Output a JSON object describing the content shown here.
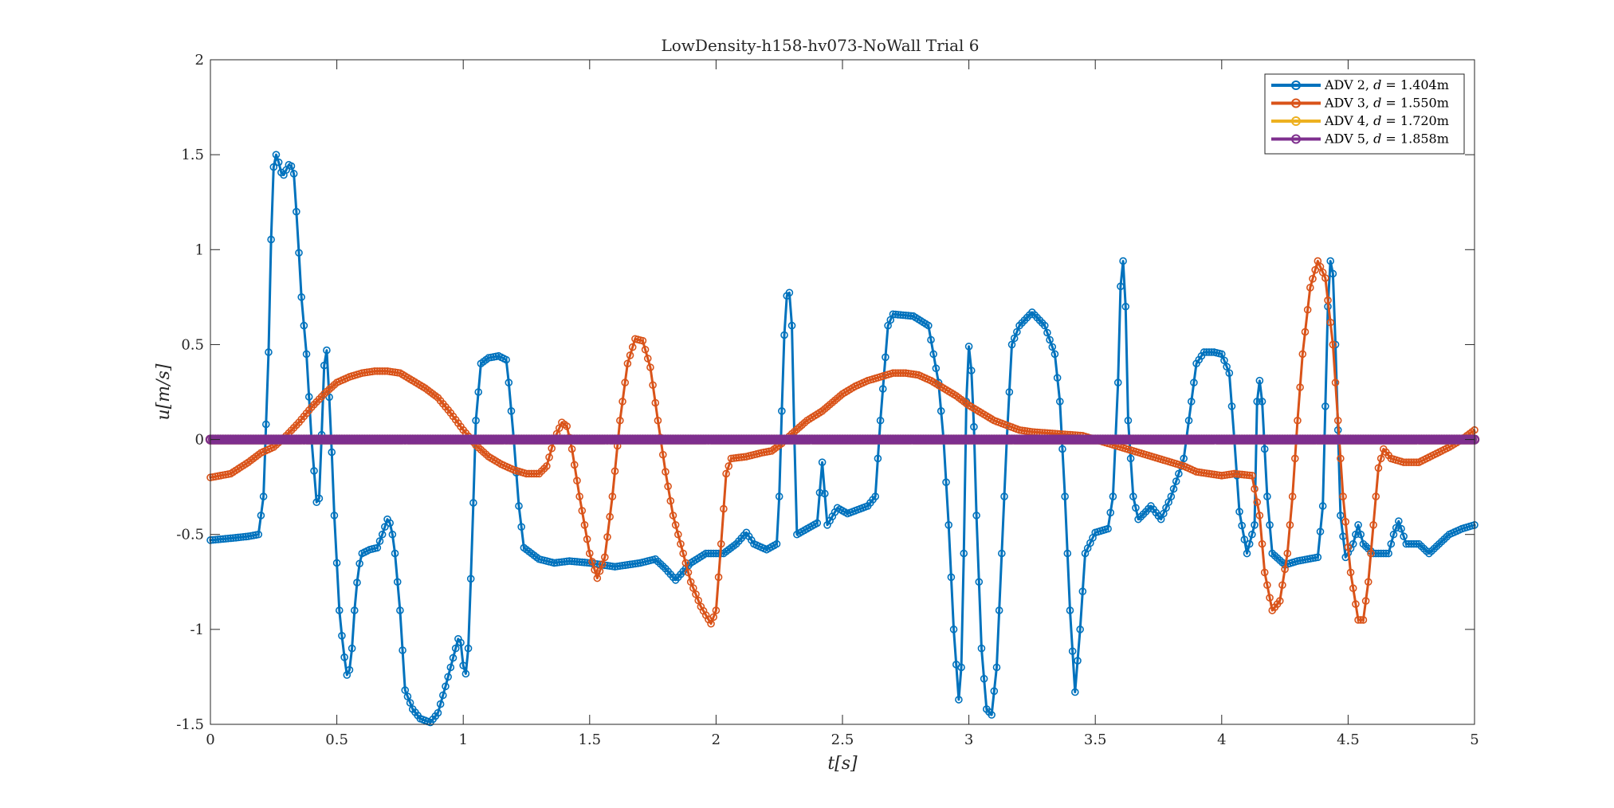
{
  "chart_data": {
    "type": "line",
    "title": "LowDensity-h158-hv073-NoWall Trial 6",
    "xlabel": "t[s]",
    "ylabel": "u[m/s]",
    "xlim": [
      0,
      5
    ],
    "ylim": [
      -1.5,
      2
    ],
    "xticks": [
      "0",
      "0.5",
      "1",
      "1.5",
      "2",
      "2.5",
      "3",
      "3.5",
      "4",
      "4.5",
      "5"
    ],
    "yticks": [
      "-1.5",
      "-1",
      "-0.5",
      "0",
      "0.5",
      "1",
      "1.5",
      "2"
    ],
    "xtick_values": [
      0,
      0.5,
      1,
      1.5,
      2,
      2.5,
      3,
      3.5,
      4,
      4.5,
      5
    ],
    "ytick_values": [
      -1.5,
      -1,
      -0.5,
      0,
      0.5,
      1,
      1.5,
      2
    ],
    "grid": false,
    "legend_position": "top-right",
    "marker": "circle",
    "series": [
      {
        "name": "ADV 2, d = 1.404m",
        "color": "#0072BD",
        "points": [
          [
            0,
            -0.53
          ],
          [
            0.08,
            -0.52
          ],
          [
            0.15,
            -0.51
          ],
          [
            0.19,
            -0.5
          ],
          [
            0.21,
            -0.3
          ],
          [
            0.23,
            0.46
          ],
          [
            0.245,
            1.35
          ],
          [
            0.255,
            1.52
          ],
          [
            0.27,
            1.46
          ],
          [
            0.285,
            1.38
          ],
          [
            0.3,
            1.42
          ],
          [
            0.315,
            1.46
          ],
          [
            0.33,
            1.4
          ],
          [
            0.345,
            1.1
          ],
          [
            0.36,
            0.75
          ],
          [
            0.38,
            0.45
          ],
          [
            0.4,
            0.0
          ],
          [
            0.42,
            -0.33
          ],
          [
            0.435,
            -0.3
          ],
          [
            0.445,
            0.35
          ],
          [
            0.46,
            0.47
          ],
          [
            0.475,
            0.1
          ],
          [
            0.49,
            -0.4
          ],
          [
            0.51,
            -0.9
          ],
          [
            0.525,
            -1.1
          ],
          [
            0.54,
            -1.24
          ],
          [
            0.555,
            -1.2
          ],
          [
            0.57,
            -0.9
          ],
          [
            0.585,
            -0.68
          ],
          [
            0.6,
            -0.6
          ],
          [
            0.63,
            -0.58
          ],
          [
            0.66,
            -0.57
          ],
          [
            0.68,
            -0.5
          ],
          [
            0.7,
            -0.42
          ],
          [
            0.715,
            -0.45
          ],
          [
            0.73,
            -0.6
          ],
          [
            0.75,
            -0.9
          ],
          [
            0.77,
            -1.32
          ],
          [
            0.8,
            -1.42
          ],
          [
            0.83,
            -1.47
          ],
          [
            0.87,
            -1.49
          ],
          [
            0.9,
            -1.44
          ],
          [
            0.93,
            -1.3
          ],
          [
            0.96,
            -1.15
          ],
          [
            0.98,
            -1.05
          ],
          [
            0.995,
            -1.08
          ],
          [
            1.005,
            -1.3
          ],
          [
            1.02,
            -1.1
          ],
          [
            1.035,
            -0.55
          ],
          [
            1.05,
            0.1
          ],
          [
            1.07,
            0.4
          ],
          [
            1.1,
            0.43
          ],
          [
            1.14,
            0.44
          ],
          [
            1.17,
            0.42
          ],
          [
            1.18,
            0.3
          ],
          [
            1.2,
            0.0
          ],
          [
            1.22,
            -0.35
          ],
          [
            1.24,
            -0.57
          ],
          [
            1.3,
            -0.63
          ],
          [
            1.36,
            -0.65
          ],
          [
            1.42,
            -0.64
          ],
          [
            1.5,
            -0.65
          ],
          [
            1.6,
            -0.67
          ],
          [
            1.7,
            -0.65
          ],
          [
            1.76,
            -0.63
          ],
          [
            1.8,
            -0.68
          ],
          [
            1.84,
            -0.74
          ],
          [
            1.9,
            -0.65
          ],
          [
            1.96,
            -0.6
          ],
          [
            2.03,
            -0.6
          ],
          [
            2.08,
            -0.55
          ],
          [
            2.12,
            -0.49
          ],
          [
            2.15,
            -0.55
          ],
          [
            2.2,
            -0.58
          ],
          [
            2.24,
            -0.55
          ],
          [
            2.25,
            -0.3
          ],
          [
            2.26,
            0.15
          ],
          [
            2.27,
            0.55
          ],
          [
            2.285,
            0.86
          ],
          [
            2.3,
            0.6
          ],
          [
            2.31,
            0.0
          ],
          [
            2.32,
            -0.5
          ],
          [
            2.4,
            -0.44
          ],
          [
            2.42,
            -0.12
          ],
          [
            2.44,
            -0.45
          ],
          [
            2.48,
            -0.36
          ],
          [
            2.52,
            -0.39
          ],
          [
            2.6,
            -0.35
          ],
          [
            2.63,
            -0.3
          ],
          [
            2.65,
            0.1
          ],
          [
            2.68,
            0.6
          ],
          [
            2.7,
            0.66
          ],
          [
            2.78,
            0.65
          ],
          [
            2.84,
            0.6
          ],
          [
            2.86,
            0.45
          ],
          [
            2.88,
            0.3
          ],
          [
            2.9,
            0.0
          ],
          [
            2.92,
            -0.45
          ],
          [
            2.94,
            -1.0
          ],
          [
            2.96,
            -1.37
          ],
          [
            2.97,
            -1.2
          ],
          [
            2.98,
            -0.6
          ],
          [
            2.99,
            0.2
          ],
          [
            3.0,
            0.49
          ],
          [
            3.015,
            0.3
          ],
          [
            3.03,
            -0.4
          ],
          [
            3.05,
            -1.1
          ],
          [
            3.07,
            -1.42
          ],
          [
            3.09,
            -1.45
          ],
          [
            3.11,
            -1.2
          ],
          [
            3.13,
            -0.6
          ],
          [
            3.15,
            0.0
          ],
          [
            3.17,
            0.5
          ],
          [
            3.2,
            0.6
          ],
          [
            3.25,
            0.67
          ],
          [
            3.3,
            0.6
          ],
          [
            3.34,
            0.45
          ],
          [
            3.36,
            0.2
          ],
          [
            3.38,
            -0.3
          ],
          [
            3.4,
            -0.9
          ],
          [
            3.42,
            -1.33
          ],
          [
            3.44,
            -1.0
          ],
          [
            3.46,
            -0.6
          ],
          [
            3.5,
            -0.49
          ],
          [
            3.55,
            -0.47
          ],
          [
            3.57,
            -0.3
          ],
          [
            3.59,
            0.3
          ],
          [
            3.605,
            1.06
          ],
          [
            3.62,
            0.7
          ],
          [
            3.63,
            0.1
          ],
          [
            3.65,
            -0.3
          ],
          [
            3.67,
            -0.42
          ],
          [
            3.7,
            -0.38
          ],
          [
            3.72,
            -0.35
          ],
          [
            3.76,
            -0.42
          ],
          [
            3.8,
            -0.3
          ],
          [
            3.85,
            -0.1
          ],
          [
            3.88,
            0.2
          ],
          [
            3.9,
            0.4
          ],
          [
            3.93,
            0.46
          ],
          [
            3.97,
            0.46
          ],
          [
            4.0,
            0.45
          ],
          [
            4.03,
            0.35
          ],
          [
            4.05,
            0.0
          ],
          [
            4.07,
            -0.38
          ],
          [
            4.1,
            -0.6
          ],
          [
            4.13,
            -0.45
          ],
          [
            4.14,
            0.2
          ],
          [
            4.15,
            0.31
          ],
          [
            4.16,
            0.2
          ],
          [
            4.18,
            -0.3
          ],
          [
            4.2,
            -0.6
          ],
          [
            4.25,
            -0.66
          ],
          [
            4.3,
            -0.64
          ],
          [
            4.38,
            -0.62
          ],
          [
            4.4,
            -0.35
          ],
          [
            4.42,
            0.7
          ],
          [
            4.435,
            1.06
          ],
          [
            4.45,
            0.5
          ],
          [
            4.47,
            -0.4
          ],
          [
            4.49,
            -0.62
          ],
          [
            4.52,
            -0.55
          ],
          [
            4.54,
            -0.45
          ],
          [
            4.56,
            -0.55
          ],
          [
            4.6,
            -0.6
          ],
          [
            4.66,
            -0.6
          ],
          [
            4.68,
            -0.5
          ],
          [
            4.7,
            -0.43
          ],
          [
            4.73,
            -0.55
          ],
          [
            4.78,
            -0.55
          ],
          [
            4.82,
            -0.6
          ],
          [
            4.86,
            -0.55
          ],
          [
            4.9,
            -0.5
          ],
          [
            4.95,
            -0.47
          ],
          [
            5.0,
            -0.45
          ]
        ]
      },
      {
        "name": "ADV 3, d = 1.550m",
        "color": "#D95319",
        "points": [
          [
            0,
            -0.2
          ],
          [
            0.08,
            -0.18
          ],
          [
            0.15,
            -0.12
          ],
          [
            0.2,
            -0.07
          ],
          [
            0.25,
            -0.04
          ],
          [
            0.3,
            0.02
          ],
          [
            0.35,
            0.09
          ],
          [
            0.4,
            0.17
          ],
          [
            0.45,
            0.24
          ],
          [
            0.5,
            0.3
          ],
          [
            0.55,
            0.33
          ],
          [
            0.6,
            0.35
          ],
          [
            0.65,
            0.36
          ],
          [
            0.7,
            0.36
          ],
          [
            0.75,
            0.35
          ],
          [
            0.8,
            0.31
          ],
          [
            0.85,
            0.27
          ],
          [
            0.9,
            0.22
          ],
          [
            0.95,
            0.14
          ],
          [
            1.0,
            0.05
          ],
          [
            1.05,
            -0.03
          ],
          [
            1.1,
            -0.09
          ],
          [
            1.15,
            -0.13
          ],
          [
            1.2,
            -0.16
          ],
          [
            1.25,
            -0.18
          ],
          [
            1.3,
            -0.18
          ],
          [
            1.33,
            -0.14
          ],
          [
            1.36,
            0.0
          ],
          [
            1.39,
            0.09
          ],
          [
            1.41,
            0.07
          ],
          [
            1.43,
            -0.05
          ],
          [
            1.46,
            -0.3
          ],
          [
            1.5,
            -0.6
          ],
          [
            1.53,
            -0.73
          ],
          [
            1.56,
            -0.62
          ],
          [
            1.59,
            -0.3
          ],
          [
            1.62,
            0.1
          ],
          [
            1.65,
            0.4
          ],
          [
            1.68,
            0.53
          ],
          [
            1.71,
            0.52
          ],
          [
            1.74,
            0.38
          ],
          [
            1.77,
            0.1
          ],
          [
            1.8,
            -0.17
          ],
          [
            1.83,
            -0.4
          ],
          [
            1.87,
            -0.6
          ],
          [
            1.9,
            -0.75
          ],
          [
            1.94,
            -0.88
          ],
          [
            1.98,
            -0.97
          ],
          [
            2.0,
            -0.9
          ],
          [
            2.02,
            -0.55
          ],
          [
            2.04,
            -0.18
          ],
          [
            2.06,
            -0.1
          ],
          [
            2.12,
            -0.09
          ],
          [
            2.18,
            -0.07
          ],
          [
            2.22,
            -0.06
          ],
          [
            2.26,
            -0.02
          ],
          [
            2.3,
            0.03
          ],
          [
            2.36,
            0.1
          ],
          [
            2.42,
            0.15
          ],
          [
            2.5,
            0.24
          ],
          [
            2.55,
            0.28
          ],
          [
            2.6,
            0.31
          ],
          [
            2.65,
            0.33
          ],
          [
            2.7,
            0.35
          ],
          [
            2.75,
            0.35
          ],
          [
            2.8,
            0.34
          ],
          [
            2.85,
            0.31
          ],
          [
            2.9,
            0.27
          ],
          [
            2.95,
            0.23
          ],
          [
            3.0,
            0.18
          ],
          [
            3.1,
            0.1
          ],
          [
            3.2,
            0.05
          ],
          [
            3.25,
            0.04
          ],
          [
            3.35,
            0.03
          ],
          [
            3.45,
            0.02
          ],
          [
            3.55,
            -0.02
          ],
          [
            3.65,
            -0.06
          ],
          [
            3.75,
            -0.1
          ],
          [
            3.85,
            -0.14
          ],
          [
            3.9,
            -0.17
          ],
          [
            3.95,
            -0.18
          ],
          [
            4.0,
            -0.19
          ],
          [
            4.05,
            -0.18
          ],
          [
            4.12,
            -0.19
          ],
          [
            4.15,
            -0.4
          ],
          [
            4.17,
            -0.7
          ],
          [
            4.2,
            -0.9
          ],
          [
            4.23,
            -0.85
          ],
          [
            4.26,
            -0.6
          ],
          [
            4.28,
            -0.3
          ],
          [
            4.3,
            0.1
          ],
          [
            4.32,
            0.45
          ],
          [
            4.35,
            0.8
          ],
          [
            4.38,
            0.94
          ],
          [
            4.41,
            0.85
          ],
          [
            4.44,
            0.5
          ],
          [
            4.46,
            0.1
          ],
          [
            4.48,
            -0.3
          ],
          [
            4.51,
            -0.7
          ],
          [
            4.54,
            -0.95
          ],
          [
            4.56,
            -0.95
          ],
          [
            4.58,
            -0.75
          ],
          [
            4.6,
            -0.45
          ],
          [
            4.62,
            -0.15
          ],
          [
            4.64,
            -0.05
          ],
          [
            4.67,
            -0.1
          ],
          [
            4.72,
            -0.12
          ],
          [
            4.78,
            -0.12
          ],
          [
            4.84,
            -0.08
          ],
          [
            4.9,
            -0.04
          ],
          [
            4.95,
            0.0
          ],
          [
            5.0,
            0.05
          ]
        ]
      },
      {
        "name": "ADV 4, d = 1.720m",
        "color": "#EDB120",
        "points": [
          [
            0,
            0
          ],
          [
            5,
            0
          ]
        ]
      },
      {
        "name": "ADV 5, d = 1.858m",
        "color": "#7E2F8E",
        "points": [
          [
            0,
            0
          ],
          [
            5,
            0
          ]
        ]
      }
    ]
  },
  "legend": {
    "items": [
      {
        "name": "ADV 2, ",
        "var": "d",
        "eq": " = 1.404m"
      },
      {
        "name": "ADV 3, ",
        "var": "d",
        "eq": " = 1.550m"
      },
      {
        "name": "ADV 4, ",
        "var": "d",
        "eq": " = 1.720m"
      },
      {
        "name": "ADV 5, ",
        "var": "d",
        "eq": " = 1.858m"
      }
    ]
  }
}
